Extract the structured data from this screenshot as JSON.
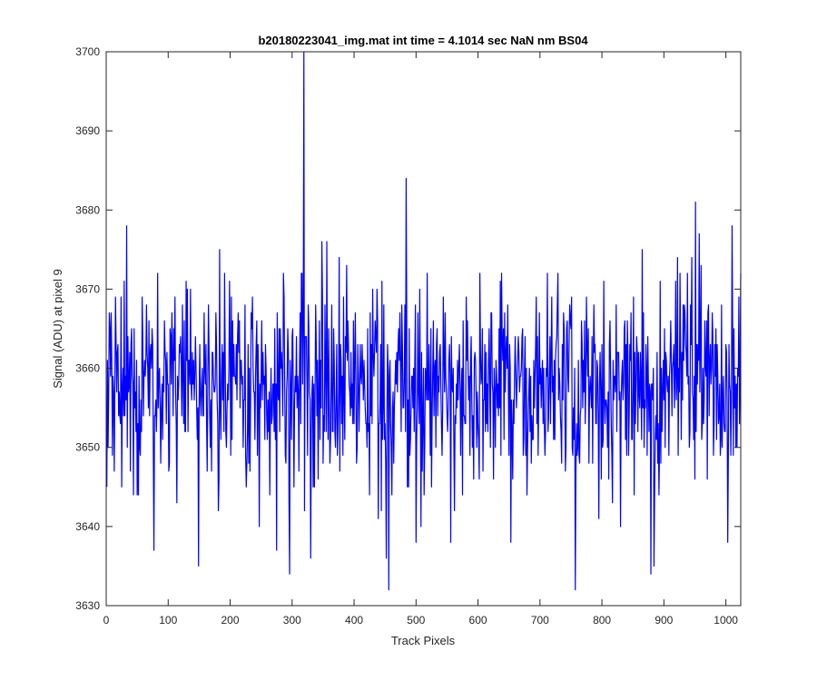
{
  "chart_data": {
    "type": "line",
    "title": "b20180223041_img.mat int time = 4.1014 sec  NaN nm BS04",
    "xlabel": "Track Pixels",
    "ylabel": "Signal (ADU) at pixel 9",
    "xlim": [
      0,
      1024
    ],
    "ylim": [
      3630,
      3700
    ],
    "xticks": [
      "0",
      "100",
      "200",
      "300",
      "400",
      "500",
      "600",
      "700",
      "800",
      "900",
      "1000"
    ],
    "yticks": [
      "3630",
      "3640",
      "3650",
      "3660",
      "3670",
      "3680",
      "3690",
      "3700"
    ],
    "grid": false,
    "legend": "none",
    "series_color": "#0000ff",
    "n_points": 1024,
    "baseline_mean": 3658,
    "noise_sd": 6.5,
    "series": [
      {
        "x": [
          33,
          77,
          83,
          149,
          275,
          296,
          319,
          330,
          348,
          452,
          456,
          484,
          488,
          518,
          556,
          757,
          865,
          879,
          884,
          951,
          1003,
          1010
        ],
        "y": [
          3678,
          3637,
          3672,
          3635,
          3637,
          3634,
          3700,
          3636,
          3676,
          3636,
          3632,
          3684,
          3645,
          3672,
          3638,
          3632,
          3675,
          3634,
          3635,
          3681,
          3638,
          3678
        ]
      }
    ]
  }
}
